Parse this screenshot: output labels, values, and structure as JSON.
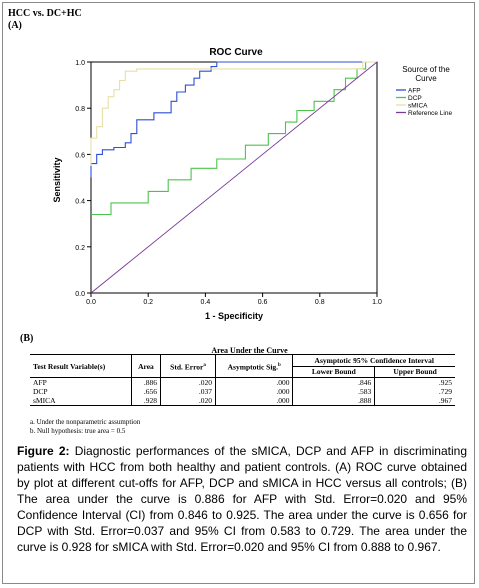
{
  "header": {
    "title": "HCC vs. DC+HC",
    "panel_a": "(A)"
  },
  "chart_data": {
    "type": "line",
    "title": "ROC Curve",
    "xlabel": "1 - Specificity",
    "ylabel": "Sensitivity",
    "xlim": [
      0.0,
      1.0
    ],
    "ylim": [
      0.0,
      1.0
    ],
    "xticks": [
      "0.0",
      "0.2",
      "0.4",
      "0.6",
      "0.8",
      "1.0"
    ],
    "yticks": [
      "0.0",
      "0.2",
      "0.4",
      "0.6",
      "0.8",
      "1.0"
    ],
    "legend_title": "Source of the Curve",
    "legend_position": "right",
    "series": [
      {
        "name": "AFP",
        "color": "#2d4fd6",
        "points": [
          [
            0.0,
            0.5
          ],
          [
            0.0,
            0.56
          ],
          [
            0.02,
            0.56
          ],
          [
            0.02,
            0.6
          ],
          [
            0.04,
            0.6
          ],
          [
            0.04,
            0.62
          ],
          [
            0.08,
            0.62
          ],
          [
            0.08,
            0.63
          ],
          [
            0.12,
            0.63
          ],
          [
            0.12,
            0.65
          ],
          [
            0.14,
            0.65
          ],
          [
            0.14,
            0.69
          ],
          [
            0.16,
            0.69
          ],
          [
            0.16,
            0.75
          ],
          [
            0.22,
            0.75
          ],
          [
            0.22,
            0.78
          ],
          [
            0.28,
            0.78
          ],
          [
            0.28,
            0.83
          ],
          [
            0.3,
            0.83
          ],
          [
            0.3,
            0.87
          ],
          [
            0.33,
            0.87
          ],
          [
            0.33,
            0.9
          ],
          [
            0.36,
            0.9
          ],
          [
            0.36,
            0.93
          ],
          [
            0.38,
            0.93
          ],
          [
            0.38,
            0.96
          ],
          [
            0.42,
            0.96
          ],
          [
            0.42,
            0.98
          ],
          [
            0.44,
            0.98
          ],
          [
            0.44,
            1.0
          ],
          [
            1.0,
            1.0
          ]
        ]
      },
      {
        "name": "DCP",
        "color": "#4cc34c",
        "points": [
          [
            0.0,
            0.34
          ],
          [
            0.07,
            0.34
          ],
          [
            0.07,
            0.39
          ],
          [
            0.2,
            0.39
          ],
          [
            0.2,
            0.44
          ],
          [
            0.27,
            0.44
          ],
          [
            0.27,
            0.49
          ],
          [
            0.35,
            0.49
          ],
          [
            0.35,
            0.54
          ],
          [
            0.44,
            0.54
          ],
          [
            0.44,
            0.58
          ],
          [
            0.54,
            0.58
          ],
          [
            0.54,
            0.64
          ],
          [
            0.62,
            0.64
          ],
          [
            0.62,
            0.69
          ],
          [
            0.68,
            0.69
          ],
          [
            0.68,
            0.74
          ],
          [
            0.72,
            0.74
          ],
          [
            0.72,
            0.79
          ],
          [
            0.78,
            0.79
          ],
          [
            0.78,
            0.83
          ],
          [
            0.85,
            0.83
          ],
          [
            0.85,
            0.88
          ],
          [
            0.89,
            0.88
          ],
          [
            0.89,
            0.93
          ],
          [
            0.93,
            0.93
          ],
          [
            0.93,
            0.97
          ],
          [
            0.96,
            0.97
          ],
          [
            0.96,
            1.0
          ],
          [
            1.0,
            1.0
          ]
        ]
      },
      {
        "name": "sMICA",
        "color": "#e8dfa6",
        "points": [
          [
            0.0,
            0.55
          ],
          [
            0.0,
            0.67
          ],
          [
            0.02,
            0.67
          ],
          [
            0.02,
            0.72
          ],
          [
            0.04,
            0.72
          ],
          [
            0.04,
            0.8
          ],
          [
            0.06,
            0.8
          ],
          [
            0.06,
            0.85
          ],
          [
            0.08,
            0.85
          ],
          [
            0.08,
            0.88
          ],
          [
            0.1,
            0.88
          ],
          [
            0.1,
            0.92
          ],
          [
            0.12,
            0.92
          ],
          [
            0.12,
            0.96
          ],
          [
            0.16,
            0.96
          ],
          [
            0.16,
            0.97
          ],
          [
            0.95,
            0.97
          ],
          [
            0.95,
            1.0
          ],
          [
            1.0,
            1.0
          ]
        ]
      },
      {
        "name": "Reference Line",
        "color": "#7a3a9a",
        "points": [
          [
            0.0,
            0.0
          ],
          [
            1.0,
            1.0
          ]
        ]
      }
    ]
  },
  "table": {
    "panel_label": "(B)",
    "title": "Area Under the Curve",
    "headers": {
      "variable": "Test Result Variable(s)",
      "area": "Area",
      "std_error": "Std. Error",
      "std_error_sup": "a",
      "asymp_sig": "Asymptotic Sig.",
      "asymp_sig_sup": "b",
      "ci_group": "Asymptotic 95% Confidence Interval",
      "lower": "Lower Bound",
      "upper": "Upper Bound"
    },
    "rows": [
      {
        "name": "AFP",
        "area": ".886",
        "se": ".020",
        "sig": ".000",
        "lower": ".846",
        "upper": ".925"
      },
      {
        "name": "DCP",
        "area": ".656",
        "se": ".037",
        "sig": ".000",
        "lower": ".583",
        "upper": ".729"
      },
      {
        "name": "sMICA",
        "area": ".928",
        "se": ".020",
        "sig": ".000",
        "lower": ".888",
        "upper": ".967"
      }
    ],
    "notes": [
      "a. Under the nonparametric assumption",
      "b. Null hypothesis: true area = 0.5"
    ]
  },
  "caption": {
    "label": "Figure 2:",
    "text": " Diagnostic performances of the sMICA, DCP and AFP in discriminating patients with HCC from both healthy and patient controls. (A) ROC curve obtained by plot at different cut-offs for AFP, DCP and sMICA in HCC versus all controls; (B) The area under the curve is 0.886 for AFP with Std. Error=0.020 and 95% Confidence Interval (CI) from 0.846 to 0.925. The area under the curve is 0.656 for DCP with Std. Error=0.037 and 95% CI from 0.583 to 0.729. The area under the curve is 0.928 for sMICA with Std. Error=0.020 and 95% CI from 0.888 to 0.967."
  }
}
